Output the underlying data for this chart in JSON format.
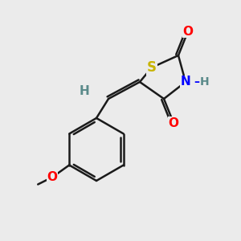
{
  "background_color": "#ebebeb",
  "line_color": "#1a1a1a",
  "line_width": 1.8,
  "atom_colors": {
    "S": "#c8b400",
    "N": "#0000ff",
    "O": "#ff0000",
    "H_label": "#5a8a8a",
    "C": "#1a1a1a"
  },
  "font_size_atoms": 11,
  "font_size_H": 10
}
